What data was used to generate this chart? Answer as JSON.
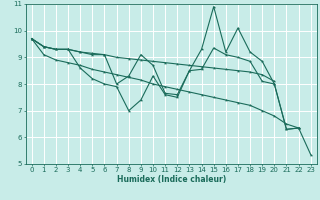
{
  "xlabel": "Humidex (Indice chaleur)",
  "ylabel": "",
  "bg_color": "#c8ece8",
  "line_color": "#1a6b5a",
  "grid_color": "#ffffff",
  "xlim": [
    -0.5,
    23.5
  ],
  "ylim": [
    5,
    11
  ],
  "xticks": [
    0,
    1,
    2,
    3,
    4,
    5,
    6,
    7,
    8,
    9,
    10,
    11,
    12,
    13,
    14,
    15,
    16,
    17,
    18,
    19,
    20,
    21,
    22,
    23
  ],
  "yticks": [
    5,
    6,
    7,
    8,
    9,
    10,
    11
  ],
  "lines": [
    [
      9.7,
      9.4,
      9.3,
      9.3,
      9.2,
      9.1,
      9.1,
      8.0,
      8.3,
      9.1,
      8.7,
      7.65,
      7.6,
      8.5,
      9.3,
      10.9,
      9.2,
      10.1,
      9.2,
      8.85,
      8.0,
      6.3,
      6.35,
      null
    ],
    [
      9.7,
      9.4,
      9.3,
      9.3,
      8.6,
      8.2,
      8.0,
      7.9,
      7.0,
      7.4,
      8.3,
      7.6,
      7.5,
      8.5,
      8.55,
      9.35,
      9.1,
      9.0,
      8.85,
      8.1,
      8.0,
      6.3,
      6.35,
      null
    ],
    [
      9.7,
      9.4,
      9.3,
      9.3,
      9.2,
      9.15,
      9.1,
      9.0,
      8.95,
      8.9,
      8.85,
      8.8,
      8.75,
      8.7,
      8.65,
      8.6,
      8.55,
      8.5,
      8.45,
      8.35,
      8.1,
      null,
      null,
      null
    ],
    [
      9.7,
      9.1,
      8.9,
      8.8,
      8.7,
      8.55,
      8.45,
      8.35,
      8.25,
      8.15,
      8.0,
      7.9,
      7.8,
      7.7,
      7.6,
      7.5,
      7.4,
      7.3,
      7.2,
      7.0,
      6.8,
      6.5,
      6.35,
      5.35
    ]
  ]
}
